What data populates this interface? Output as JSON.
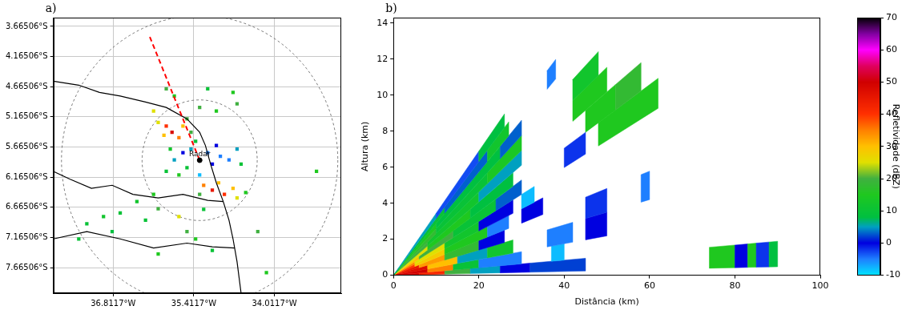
{
  "chart_data": [
    {
      "panel": "a)",
      "type": "map",
      "xlim": [
        -37.85,
        -32.85
      ],
      "xticks": [
        {
          "value": -36.8117,
          "label": "36.8117°W"
        },
        {
          "value": -35.4117,
          "label": "35.4117°W"
        },
        {
          "value": -34.0117,
          "label": "34.0117°W"
        }
      ],
      "ylim": [
        -8.09,
        -3.52
      ],
      "yticks": [
        {
          "value": -3.66506,
          "label": "3.66506°S"
        },
        {
          "value": -4.16506,
          "label": "4.16506°S"
        },
        {
          "value": -4.66506,
          "label": "4.66506°S"
        },
        {
          "value": -5.16506,
          "label": "5.16506°S"
        },
        {
          "value": -5.66506,
          "label": "5.66506°S"
        },
        {
          "value": -6.16506,
          "label": "6.16506°S"
        },
        {
          "value": -6.66506,
          "label": "6.66506°S"
        },
        {
          "value": -7.16506,
          "label": "7.16506°S"
        },
        {
          "value": -7.66506,
          "label": "7.66506°S"
        }
      ],
      "grid": true,
      "radar": {
        "x": -35.31,
        "y": -5.885,
        "label": "Radar"
      },
      "range_rings": [
        1.0,
        2.4
      ],
      "cross_section": {
        "x": [
          -35.31,
          -36.18
        ],
        "y": [
          -5.885,
          -3.83
        ],
        "color": "#ff0000",
        "line_style": "dashed"
      },
      "boundaries": [
        {
          "color": "#000000",
          "x": [
            -37.85,
            -37.41,
            -37.05,
            -36.69,
            -36.25,
            -35.89,
            -35.53,
            -35.31,
            -35.21,
            -35.12,
            -35.02,
            -34.9,
            -34.8,
            -34.73,
            -34.66,
            -34.59
          ],
          "y": [
            -4.575,
            -4.64,
            -4.76,
            -4.82,
            -4.92,
            -5.01,
            -5.2,
            -5.42,
            -5.64,
            -5.95,
            -6.26,
            -6.57,
            -6.88,
            -7.19,
            -7.57,
            -8.09
          ]
        },
        {
          "color": "#000000",
          "x": [
            -37.85,
            -37.56,
            -37.19,
            -36.83,
            -36.47,
            -36.03,
            -35.6,
            -35.17,
            -34.9
          ],
          "y": [
            -6.07,
            -6.2,
            -6.35,
            -6.3,
            -6.45,
            -6.51,
            -6.45,
            -6.55,
            -6.57
          ]
        },
        {
          "color": "#000000",
          "x": [
            -37.85,
            -37.27,
            -36.69,
            -36.11,
            -35.53,
            -35.09,
            -34.7
          ],
          "y": [
            -7.19,
            -7.07,
            -7.19,
            -7.34,
            -7.26,
            -7.32,
            -7.34
          ]
        }
      ],
      "echoes": {
        "x": [
          -35.6,
          -35.46,
          -35.17,
          -35.09,
          -35.53,
          -35.75,
          -34.95,
          -35.31,
          -35.67,
          -35.89,
          -35.38,
          -35.02,
          -34.8,
          -35.82,
          -35.89,
          -35.79,
          -35.67,
          -36.03,
          -35.6,
          -35.53,
          -35.93,
          -35.46,
          -35.24,
          -35.09,
          -34.88,
          -34.73,
          -34.66,
          -35.31,
          -34.98,
          -34.51,
          -35.89,
          -35.75,
          -35.17,
          -34.73,
          -34.66,
          -35.02,
          -36.11,
          -35.31,
          -34.59,
          -34.66,
          -33.28,
          -37.27,
          -36.98,
          -36.69,
          -36.4,
          -36.11,
          -36.03,
          -36.83,
          -36.25,
          -37.41,
          -35.53,
          -35.38,
          -35.67,
          -35.24,
          -34.3,
          -34.15,
          -35.09,
          -36.03
        ],
        "y": [
          -5.76,
          -5.7,
          -5.76,
          -5.95,
          -6.01,
          -5.88,
          -5.82,
          -6.13,
          -6.13,
          -6.07,
          -5.57,
          -5.64,
          -5.88,
          -5.7,
          -5.32,
          -5.42,
          -5.51,
          -5.26,
          -5.32,
          -5.2,
          -5.47,
          -5.42,
          -6.3,
          -6.38,
          -6.45,
          -6.35,
          -6.51,
          -6.45,
          -6.26,
          -6.42,
          -4.7,
          -4.82,
          -4.7,
          -4.76,
          -4.95,
          -5.07,
          -5.07,
          -5.01,
          -5.95,
          -5.7,
          -6.07,
          -6.94,
          -6.82,
          -6.76,
          -6.57,
          -6.45,
          -6.69,
          -7.07,
          -6.88,
          -7.19,
          -7.07,
          -7.19,
          -6.82,
          -6.7,
          -7.07,
          -7.75,
          -7.38,
          -7.44
        ],
        "dbz": [
          0,
          5,
          -5,
          0,
          10,
          5,
          -5,
          -8,
          15,
          10,
          10,
          0,
          -5,
          12,
          40,
          48,
          35,
          25,
          30,
          20,
          30,
          20,
          35,
          45,
          40,
          30,
          25,
          20,
          30,
          15,
          20,
          15,
          10,
          15,
          20,
          15,
          25,
          20,
          10,
          5,
          15,
          10,
          12,
          10,
          12,
          15,
          20,
          8,
          10,
          10,
          20,
          15,
          25,
          10,
          20,
          15,
          10,
          15
        ]
      }
    },
    {
      "panel": "b)",
      "type": "cross_section",
      "xlabel": "Distância (km)",
      "ylabel": "Altura (km)",
      "xlim": [
        0,
        100
      ],
      "xticks": [
        0,
        20,
        40,
        60,
        80,
        100
      ],
      "ylim": [
        0,
        14.3
      ],
      "yticks": [
        0,
        2,
        4,
        6,
        8,
        10,
        12,
        14
      ],
      "grid": false,
      "beams": [
        {
          "elevation": [
            0.3,
            1.2
          ],
          "gates": [
            [
              0,
              6,
              48
            ],
            [
              6,
              12,
              42
            ],
            [
              12,
              18,
              20
            ],
            [
              18,
              25,
              5
            ],
            [
              25,
              32,
              0
            ],
            [
              32,
              45,
              2
            ],
            [
              74,
              80,
              15
            ],
            [
              80,
              83,
              0
            ],
            [
              83,
              85,
              15
            ],
            [
              85,
              88,
              -2
            ],
            [
              88,
              90,
              8
            ]
          ]
        },
        {
          "elevation": [
            1.2,
            2.5
          ],
          "gates": [
            [
              0,
              8,
              50
            ],
            [
              8,
              14,
              35
            ],
            [
              14,
              20,
              10
            ],
            [
              20,
              30,
              -5
            ],
            [
              37,
              40,
              -8
            ]
          ]
        },
        {
          "elevation": [
            2.5,
            4.0
          ],
          "gates": [
            [
              0,
              8,
              47
            ],
            [
              8,
              15,
              30
            ],
            [
              15,
              22,
              5
            ],
            [
              22,
              28,
              12
            ],
            [
              36,
              42,
              -5
            ],
            [
              45,
              50,
              0
            ]
          ]
        },
        {
          "elevation": [
            4.0,
            5.5
          ],
          "gates": [
            [
              0,
              6,
              45
            ],
            [
              6,
              12,
              33
            ],
            [
              12,
              20,
              18
            ],
            [
              20,
              26,
              0
            ],
            [
              45,
              50,
              -2
            ],
            [
              58,
              60,
              -5
            ]
          ]
        },
        {
          "elevation": [
            5.5,
            7.0
          ],
          "gates": [
            [
              0,
              5,
              40
            ],
            [
              5,
              12,
              28
            ],
            [
              12,
              22,
              15
            ],
            [
              22,
              27,
              -5
            ],
            [
              30,
              35,
              0
            ]
          ]
        },
        {
          "elevation": [
            7.0,
            8.5
          ],
          "gates": [
            [
              0,
              5,
              35
            ],
            [
              5,
              12,
              25
            ],
            [
              12,
              20,
              12
            ],
            [
              20,
              28,
              0
            ],
            [
              30,
              33,
              -8
            ]
          ]
        },
        {
          "elevation": [
            8.5,
            10.0
          ],
          "gates": [
            [
              0,
              6,
              30
            ],
            [
              6,
              14,
              20
            ],
            [
              14,
              24,
              10
            ],
            [
              24,
              30,
              3
            ],
            [
              40,
              45,
              -2
            ],
            [
              48,
              62,
              15
            ]
          ]
        },
        {
          "elevation": [
            10.0,
            11.5
          ],
          "gates": [
            [
              0,
              8,
              25
            ],
            [
              8,
              18,
              15
            ],
            [
              18,
              28,
              8
            ],
            [
              45,
              52,
              15
            ],
            [
              52,
              58,
              18
            ]
          ]
        },
        {
          "elevation": [
            11.5,
            13.0
          ],
          "gates": [
            [
              0,
              8,
              20
            ],
            [
              8,
              20,
              12
            ],
            [
              20,
              30,
              5
            ],
            [
              42,
              50,
              15
            ]
          ]
        },
        {
          "elevation": [
            13.0,
            14.5
          ],
          "gates": [
            [
              0,
              10,
              18
            ],
            [
              10,
              22,
              10
            ],
            [
              22,
              30,
              14
            ],
            [
              42,
              48,
              12
            ]
          ]
        },
        {
          "elevation": [
            14.5,
            16.0
          ],
          "gates": [
            [
              0,
              10,
              15
            ],
            [
              10,
              25,
              8
            ],
            [
              25,
              30,
              3
            ]
          ]
        },
        {
          "elevation": [
            16.0,
            17.5
          ],
          "gates": [
            [
              0,
              12,
              10
            ],
            [
              12,
              22,
              3
            ],
            [
              22,
              27,
              12
            ],
            [
              36,
              38,
              -5
            ]
          ]
        },
        {
          "elevation": [
            17.5,
            19.0
          ],
          "gates": [
            [
              0,
              10,
              5
            ],
            [
              10,
              20,
              -3
            ],
            [
              20,
              26,
              8
            ]
          ]
        }
      ],
      "colorbar": {
        "label": "Refletividade (dBZ)",
        "range": [
          -10,
          70
        ],
        "ticks": [
          -10,
          0,
          10,
          20,
          30,
          40,
          50,
          60,
          70
        ]
      }
    }
  ]
}
